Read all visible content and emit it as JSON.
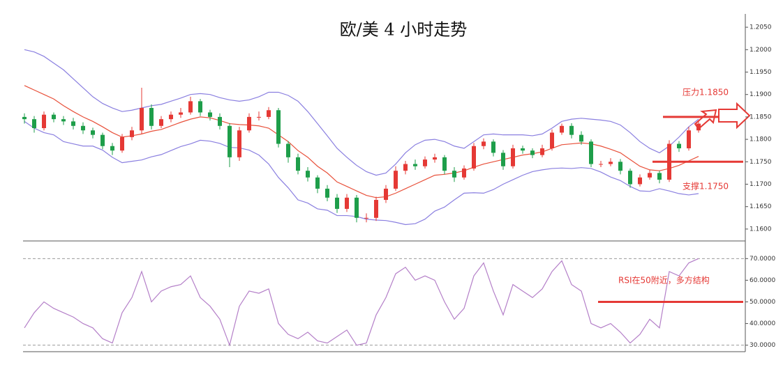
{
  "chart_data": [
    {
      "type": "candlestick",
      "title": "欧/美 4 小时走势",
      "up_color": "#e53935",
      "down_color": "#1e9e4a",
      "candles": [
        [
          1.185,
          1.1858,
          1.1835,
          1.1845
        ],
        [
          1.1845,
          1.1852,
          1.1815,
          1.1825
        ],
        [
          1.1825,
          1.1862,
          1.182,
          1.1855
        ],
        [
          1.1855,
          1.186,
          1.1838,
          1.1845
        ],
        [
          1.1845,
          1.1852,
          1.1832,
          1.184
        ],
        [
          1.184,
          1.1848,
          1.1822,
          1.183
        ],
        [
          1.183,
          1.1838,
          1.1812,
          1.182
        ],
        [
          1.182,
          1.1826,
          1.1802,
          1.181
        ],
        [
          1.181,
          1.1815,
          1.1778,
          1.1785
        ],
        [
          1.1785,
          1.1792,
          1.1765,
          1.1775
        ],
        [
          1.1775,
          1.1812,
          1.177,
          1.1805
        ],
        [
          1.1805,
          1.1828,
          1.1798,
          1.182
        ],
        [
          1.182,
          1.1915,
          1.1812,
          1.187
        ],
        [
          1.187,
          1.1878,
          1.1822,
          1.183
        ],
        [
          1.183,
          1.1852,
          1.1825,
          1.1845
        ],
        [
          1.1845,
          1.1862,
          1.1838,
          1.1855
        ],
        [
          1.1855,
          1.187,
          1.1848,
          1.186
        ],
        [
          1.186,
          1.1895,
          1.1855,
          1.1885
        ],
        [
          1.1885,
          1.189,
          1.1852,
          1.186
        ],
        [
          1.186,
          1.1866,
          1.1842,
          1.185
        ],
        [
          1.185,
          1.1858,
          1.1822,
          1.183
        ],
        [
          1.183,
          1.1836,
          1.1738,
          1.176
        ],
        [
          1.176,
          1.1828,
          1.1752,
          1.182
        ],
        [
          1.182,
          1.1858,
          1.1815,
          1.185
        ],
        [
          1.185,
          1.1862,
          1.1842,
          1.185
        ],
        [
          1.185,
          1.1872,
          1.1845,
          1.1865
        ],
        [
          1.1865,
          1.187,
          1.1782,
          1.179
        ],
        [
          1.179,
          1.1796,
          1.1748,
          1.176
        ],
        [
          1.176,
          1.1768,
          1.1722,
          1.173
        ],
        [
          1.173,
          1.1738,
          1.1706,
          1.1715
        ],
        [
          1.1715,
          1.172,
          1.168,
          1.169
        ],
        [
          1.169,
          1.1698,
          1.1662,
          1.167
        ],
        [
          1.167,
          1.1678,
          1.1636,
          1.1645
        ],
        [
          1.1645,
          1.1678,
          1.1638,
          1.167
        ],
        [
          1.167,
          1.1676,
          1.1615,
          1.1625
        ],
        [
          1.1625,
          1.1635,
          1.1615,
          1.1625
        ],
        [
          1.1625,
          1.1672,
          1.1618,
          1.1665
        ],
        [
          1.1665,
          1.1698,
          1.1658,
          1.169
        ],
        [
          1.169,
          1.174,
          1.1685,
          1.173
        ],
        [
          1.173,
          1.1752,
          1.1722,
          1.1745
        ],
        [
          1.1745,
          1.1755,
          1.1732,
          1.174
        ],
        [
          1.174,
          1.1762,
          1.1735,
          1.1755
        ],
        [
          1.1755,
          1.1768,
          1.1748,
          1.176
        ],
        [
          1.176,
          1.1765,
          1.1722,
          1.173
        ],
        [
          1.173,
          1.1738,
          1.1705,
          1.1715
        ],
        [
          1.1715,
          1.1742,
          1.171,
          1.1735
        ],
        [
          1.1735,
          1.1792,
          1.173,
          1.1785
        ],
        [
          1.1785,
          1.1802,
          1.1778,
          1.1795
        ],
        [
          1.1795,
          1.18,
          1.1762,
          1.177
        ],
        [
          1.177,
          1.1776,
          1.1732,
          1.174
        ],
        [
          1.174,
          1.1788,
          1.1735,
          1.178
        ],
        [
          1.178,
          1.1786,
          1.1768,
          1.1775
        ],
        [
          1.1775,
          1.178,
          1.1758,
          1.1765
        ],
        [
          1.1765,
          1.1788,
          1.176,
          1.178
        ],
        [
          1.178,
          1.1822,
          1.1775,
          1.1815
        ],
        [
          1.1815,
          1.1835,
          1.181,
          1.183
        ],
        [
          1.183,
          1.1836,
          1.1802,
          1.181
        ],
        [
          1.181,
          1.1818,
          1.1788,
          1.1795
        ],
        [
          1.1795,
          1.18,
          1.1738,
          1.1745
        ],
        [
          1.1745,
          1.1752,
          1.1738,
          1.1745
        ],
        [
          1.1745,
          1.1758,
          1.174,
          1.175
        ],
        [
          1.175,
          1.1756,
          1.1722,
          1.173
        ],
        [
          1.173,
          1.1735,
          1.1692,
          1.17
        ],
        [
          1.17,
          1.1722,
          1.1695,
          1.1715
        ],
        [
          1.1715,
          1.1732,
          1.171,
          1.1725
        ],
        [
          1.1725,
          1.173,
          1.1702,
          1.171
        ],
        [
          1.171,
          1.1798,
          1.1705,
          1.179
        ],
        [
          1.179,
          1.1796,
          1.1772,
          1.178
        ],
        [
          1.178,
          1.1828,
          1.1775,
          1.182
        ],
        [
          1.182,
          1.1842,
          1.1815,
          1.1835
        ]
      ],
      "lines": [
        {
          "color": "#8a7fe0",
          "values": [
            1.2,
            1.1995,
            1.1985,
            1.197,
            1.1955,
            1.1935,
            1.1915,
            1.1895,
            1.188,
            1.187,
            1.1862,
            1.1865,
            1.187,
            1.1875,
            1.1878,
            1.1885,
            1.1892,
            1.19,
            1.1902,
            1.19,
            1.1893,
            1.1888,
            1.1885,
            1.1888,
            1.1895,
            1.1905,
            1.1905,
            1.1898,
            1.1885,
            1.1862,
            1.1835,
            1.1808,
            1.178,
            1.176,
            1.1742,
            1.1728,
            1.172,
            1.1725,
            1.1745,
            1.177,
            1.1788,
            1.1798,
            1.18,
            1.1795,
            1.1785,
            1.178,
            1.1795,
            1.181,
            1.1812,
            1.181,
            1.181,
            1.181,
            1.1808,
            1.1812,
            1.1825,
            1.184,
            1.1845,
            1.1847,
            1.1845,
            1.1843,
            1.184,
            1.1832,
            1.1815,
            1.1795,
            1.178,
            1.177,
            1.1785,
            1.1805,
            1.1828,
            1.1845
          ]
        },
        {
          "color": "#e8503a",
          "values": [
            1.192,
            1.191,
            1.19,
            1.189,
            1.1875,
            1.1862,
            1.185,
            1.184,
            1.1828,
            1.1815,
            1.1805,
            1.1808,
            1.1812,
            1.1818,
            1.1822,
            1.183,
            1.1838,
            1.1845,
            1.185,
            1.1848,
            1.1842,
            1.1835,
            1.1833,
            1.1832,
            1.183,
            1.1825,
            1.181,
            1.1795,
            1.1775,
            1.176,
            1.174,
            1.1725,
            1.1705,
            1.1695,
            1.1685,
            1.1675,
            1.167,
            1.1672,
            1.168,
            1.169,
            1.17,
            1.171,
            1.172,
            1.1722,
            1.1725,
            1.173,
            1.1738,
            1.1745,
            1.175,
            1.1755,
            1.176,
            1.1765,
            1.1768,
            1.1772,
            1.178,
            1.1788,
            1.179,
            1.1792,
            1.179,
            1.1785,
            1.1778,
            1.177,
            1.1755,
            1.174,
            1.1732,
            1.173,
            1.1735,
            1.1742,
            1.1752,
            1.1762
          ]
        },
        {
          "color": "#8a7fe0",
          "values": [
            1.184,
            1.1825,
            1.1815,
            1.181,
            1.1795,
            1.179,
            1.1785,
            1.1785,
            1.1776,
            1.176,
            1.1748,
            1.1751,
            1.1754,
            1.1761,
            1.1766,
            1.1775,
            1.1784,
            1.179,
            1.1798,
            1.1796,
            1.1791,
            1.1782,
            1.1781,
            1.1776,
            1.1765,
            1.1745,
            1.1715,
            1.1692,
            1.1665,
            1.1658,
            1.1645,
            1.1642,
            1.163,
            1.163,
            1.1628,
            1.1622,
            1.162,
            1.1619,
            1.1615,
            1.161,
            1.1612,
            1.1622,
            1.164,
            1.1649,
            1.1665,
            1.168,
            1.1681,
            1.168,
            1.1688,
            1.17,
            1.171,
            1.172,
            1.1728,
            1.1732,
            1.1735,
            1.1736,
            1.1735,
            1.1737,
            1.1735,
            1.1727,
            1.1716,
            1.1708,
            1.1695,
            1.1685,
            1.1684,
            1.169,
            1.1685,
            1.1679,
            1.1676,
            1.1679
          ]
        }
      ],
      "ylim": [
        1.1575,
        1.2075
      ],
      "yticks": [
        {
          "value": 1.205,
          "label": "1.2050"
        },
        {
          "value": 1.2,
          "label": "1.2000"
        },
        {
          "value": 1.195,
          "label": "1.1950"
        },
        {
          "value": 1.19,
          "label": "1.1900"
        },
        {
          "value": 1.185,
          "label": "1.1850"
        },
        {
          "value": 1.18,
          "label": "1.1800"
        },
        {
          "value": 1.175,
          "label": "1.1750"
        },
        {
          "value": 1.17,
          "label": "1.1700"
        },
        {
          "value": 1.165,
          "label": "1.1650"
        },
        {
          "value": 1.16,
          "label": "1.1600"
        }
      ],
      "annotations": [
        {
          "text": "压力1.1850",
          "level": 1.185,
          "color": "#e53935"
        },
        {
          "text": "支撑1.1750",
          "level": 1.175,
          "color": "#e53935"
        }
      ]
    },
    {
      "type": "line",
      "lines": [
        {
          "color": "#b47fc8",
          "values": [
            38,
            45,
            50,
            47,
            45,
            43,
            40,
            38,
            33,
            31,
            45,
            52,
            64,
            50,
            55,
            57,
            58,
            62,
            52,
            48,
            42,
            30,
            48,
            55,
            54,
            56,
            40,
            35,
            33,
            36,
            32,
            31,
            34,
            37,
            30,
            31,
            44,
            52,
            63,
            66,
            60,
            62,
            60,
            50,
            42,
            47,
            62,
            68,
            55,
            44,
            58,
            55,
            52,
            56,
            64,
            69,
            58,
            55,
            40,
            38,
            40,
            36,
            31,
            35,
            42,
            38,
            64,
            62,
            68,
            70
          ]
        }
      ],
      "ylim": [
        27,
        77.5
      ],
      "yticks": [
        {
          "value": 70,
          "label": "70.0000"
        },
        {
          "value": 60,
          "label": "60.0000"
        },
        {
          "value": 50,
          "label": "50.0000"
        },
        {
          "value": 40,
          "label": "40.0000"
        },
        {
          "value": 30,
          "label": "30.0000"
        }
      ],
      "ref_lines": [
        70,
        30
      ],
      "annotations": [
        {
          "text": "RSI在50附近，多方结构",
          "level": 50,
          "color": "#e53935"
        }
      ]
    }
  ]
}
